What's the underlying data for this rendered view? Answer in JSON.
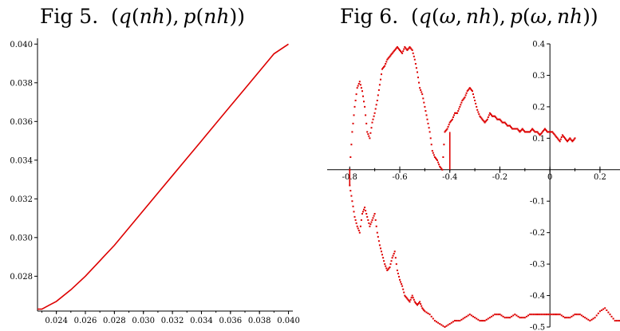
{
  "chart_data": [
    {
      "type": "line",
      "title": "Fig 5.  (q(nh), p(nh))",
      "xlabel": "",
      "ylabel": "",
      "xlim": [
        0.0227,
        0.0403
      ],
      "ylim": [
        0.0262,
        0.0403
      ],
      "x_ticks": [
        "0.024",
        "0.026",
        "0.028",
        "0.030",
        "0.032",
        "0.034",
        "0.036",
        "0.038",
        "0.040"
      ],
      "y_ticks": [
        "0.028",
        "0.030",
        "0.032",
        "0.034",
        "0.036",
        "0.038",
        "0.040"
      ],
      "grid": false,
      "color": "#dd0000",
      "series": [
        {
          "x": [
            0.0227,
            0.023,
            0.0235,
            0.024,
            0.025,
            0.026,
            0.027,
            0.028,
            0.029,
            0.03,
            0.031,
            0.032,
            0.033,
            0.034,
            0.035,
            0.036,
            0.037,
            0.038,
            0.039,
            0.04
          ],
          "y": [
            0.0263,
            0.0263,
            0.0265,
            0.0267,
            0.0273,
            0.028,
            0.0288,
            0.0296,
            0.0305,
            0.0314,
            0.0323,
            0.0332,
            0.0341,
            0.035,
            0.0359,
            0.0368,
            0.0377,
            0.0386,
            0.0395,
            0.04
          ]
        }
      ]
    },
    {
      "type": "scatter",
      "title": "Fig 6.  (q(ω, nh), p(ω, nh))",
      "xlabel": "",
      "ylabel": "",
      "xlim": [
        -0.82,
        0.28
      ],
      "ylim": [
        -0.5,
        0.4
      ],
      "x_ticks": [
        "-0.8",
        "-0.6",
        "-0.4",
        "-0.2",
        "0",
        "0.2"
      ],
      "y_ticks": [
        "0.4",
        "0.3",
        "0.2",
        "0.1",
        "-0.1",
        "-0.2",
        "-0.3",
        "-0.4",
        "-0.5"
      ],
      "grid": false,
      "color": "#dd0000",
      "series": [
        {
          "x": [
            -0.8,
            -0.79,
            -0.78,
            -0.77,
            -0.76,
            -0.75,
            -0.74,
            -0.73,
            -0.72,
            -0.71,
            -0.7,
            -0.69,
            -0.68,
            -0.67,
            -0.66,
            -0.65,
            -0.64,
            -0.63,
            -0.62,
            -0.61,
            -0.6,
            -0.59,
            -0.58,
            -0.57,
            -0.56,
            -0.55,
            -0.54,
            -0.53,
            -0.52,
            -0.51,
            -0.5,
            -0.49,
            -0.48,
            -0.47,
            -0.46,
            -0.45,
            -0.44,
            -0.43,
            -0.42,
            -0.41,
            -0.4,
            -0.39,
            -0.38,
            -0.37,
            -0.36,
            -0.35,
            -0.34,
            -0.33,
            -0.32,
            -0.31,
            -0.3,
            -0.29,
            -0.28,
            -0.27,
            -0.26,
            -0.25,
            -0.24,
            -0.23,
            -0.22,
            -0.21,
            -0.2,
            -0.19,
            -0.18,
            -0.17,
            -0.16,
            -0.15,
            -0.14,
            -0.13,
            -0.12,
            -0.11,
            -0.1,
            -0.09,
            -0.08,
            -0.07,
            -0.06,
            -0.05,
            -0.04,
            -0.03,
            -0.02,
            -0.01,
            0.0,
            0.01,
            0.02,
            0.03,
            0.04,
            0.05,
            0.06,
            0.07,
            0.08,
            0.09,
            0.1
          ],
          "y": [
            0.0,
            0.12,
            0.2,
            0.26,
            0.28,
            0.25,
            0.2,
            0.12,
            0.1,
            0.15,
            0.18,
            0.22,
            0.27,
            0.32,
            0.33,
            0.35,
            0.36,
            0.37,
            0.38,
            0.39,
            0.38,
            0.37,
            0.39,
            0.38,
            0.39,
            0.38,
            0.35,
            0.31,
            0.26,
            0.24,
            0.2,
            0.16,
            0.12,
            0.06,
            0.04,
            0.03,
            0.01,
            0.0,
            0.12,
            0.13,
            0.15,
            0.16,
            0.18,
            0.18,
            0.2,
            0.22,
            0.23,
            0.25,
            0.26,
            0.25,
            0.22,
            0.19,
            0.17,
            0.16,
            0.15,
            0.16,
            0.18,
            0.17,
            0.17,
            0.16,
            0.16,
            0.15,
            0.15,
            0.14,
            0.14,
            0.13,
            0.13,
            0.13,
            0.12,
            0.13,
            0.12,
            0.12,
            0.12,
            0.13,
            0.12,
            0.12,
            0.11,
            0.12,
            0.13,
            0.12,
            0.12,
            0.12,
            0.11,
            0.1,
            0.09,
            0.11,
            0.1,
            0.09,
            0.1,
            0.09,
            0.1
          ]
        },
        {
          "x": [
            -0.8,
            -0.79,
            -0.78,
            -0.77,
            -0.76,
            -0.75,
            -0.74,
            -0.73,
            -0.72,
            -0.71,
            -0.7,
            -0.69,
            -0.68,
            -0.67,
            -0.66,
            -0.65,
            -0.64,
            -0.63,
            -0.62,
            -0.61,
            -0.6,
            -0.59,
            -0.58,
            -0.57,
            -0.56,
            -0.55,
            -0.54,
            -0.53,
            -0.52,
            -0.51,
            -0.5,
            -0.48,
            -0.46,
            -0.44,
            -0.42,
            -0.4,
            -0.38,
            -0.36,
            -0.34,
            -0.32,
            -0.3,
            -0.28,
            -0.26,
            -0.24,
            -0.22,
            -0.2,
            -0.18,
            -0.16,
            -0.14,
            -0.12,
            -0.1,
            -0.08,
            -0.06,
            -0.04,
            -0.02,
            0.0,
            0.02,
            0.04,
            0.06,
            0.08,
            0.1,
            0.12,
            0.14,
            0.16,
            0.18,
            0.2,
            0.22,
            0.24,
            0.26,
            0.28
          ],
          "y": [
            -0.05,
            -0.1,
            -0.15,
            -0.18,
            -0.2,
            -0.14,
            -0.12,
            -0.15,
            -0.18,
            -0.16,
            -0.14,
            -0.2,
            -0.24,
            -0.27,
            -0.3,
            -0.32,
            -0.31,
            -0.28,
            -0.26,
            -0.32,
            -0.35,
            -0.37,
            -0.4,
            -0.41,
            -0.42,
            -0.4,
            -0.42,
            -0.43,
            -0.42,
            -0.44,
            -0.45,
            -0.46,
            -0.48,
            -0.49,
            -0.5,
            -0.49,
            -0.48,
            -0.48,
            -0.47,
            -0.46,
            -0.47,
            -0.48,
            -0.48,
            -0.47,
            -0.46,
            -0.46,
            -0.47,
            -0.47,
            -0.46,
            -0.47,
            -0.47,
            -0.46,
            -0.46,
            -0.46,
            -0.46,
            -0.46,
            -0.46,
            -0.46,
            -0.47,
            -0.47,
            -0.46,
            -0.46,
            -0.47,
            -0.48,
            -0.47,
            -0.45,
            -0.44,
            -0.46,
            -0.48,
            -0.48
          ]
        }
      ]
    }
  ]
}
